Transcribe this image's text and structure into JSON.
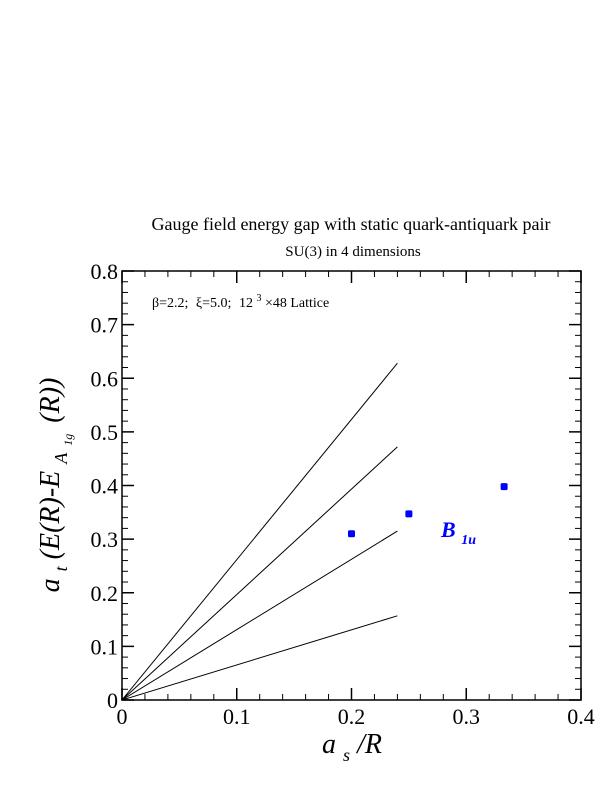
{
  "chart_data": {
    "type": "scatter",
    "title": "Gauge field energy gap with static quark-antiquark pair",
    "subtitle": "SU(3) in 4 dimensions",
    "annotation": {
      "beta": "β=2.2;",
      "xi": "ξ=5.0;",
      "lattice_base": "12",
      "lattice_exp": "3",
      "lattice_rest": "×48 Lattice"
    },
    "xlabel": {
      "main": "a",
      "sub": "s",
      "rest": "/R"
    },
    "ylabel": {
      "prefix": "a",
      "prefix_sub": "t",
      "body": "(E(R)-E",
      "sub": "A",
      "subsub": "1g",
      "tail": "(R))"
    },
    "xlim": [
      0,
      0.4
    ],
    "ylim": [
      0,
      0.8
    ],
    "x_ticks": [
      0,
      0.1,
      0.2,
      0.3,
      0.4
    ],
    "x_tick_labels": [
      "0",
      "0.1",
      "0.2",
      "0.3",
      "0.4"
    ],
    "y_ticks": [
      0,
      0.1,
      0.2,
      0.3,
      0.4,
      0.5,
      0.6,
      0.7,
      0.8
    ],
    "y_tick_labels": [
      "0",
      "0.1",
      "0.2",
      "0.3",
      "0.4",
      "0.5",
      "0.6",
      "0.7",
      "0.8"
    ],
    "grid": false,
    "reference_lines": [
      {
        "x": [
          0,
          0.24
        ],
        "y": [
          0,
          0.157
        ]
      },
      {
        "x": [
          0,
          0.24
        ],
        "y": [
          0,
          0.315
        ]
      },
      {
        "x": [
          0,
          0.24
        ],
        "y": [
          0,
          0.472
        ]
      },
      {
        "x": [
          0,
          0.24
        ],
        "y": [
          0,
          0.628
        ]
      }
    ],
    "series": [
      {
        "name": "B1u",
        "name_main": "B",
        "name_sub": "1u",
        "color": "#0000ff",
        "x": [
          0.2,
          0.25,
          0.333
        ],
        "y": [
          0.31,
          0.347,
          0.398
        ]
      }
    ]
  }
}
